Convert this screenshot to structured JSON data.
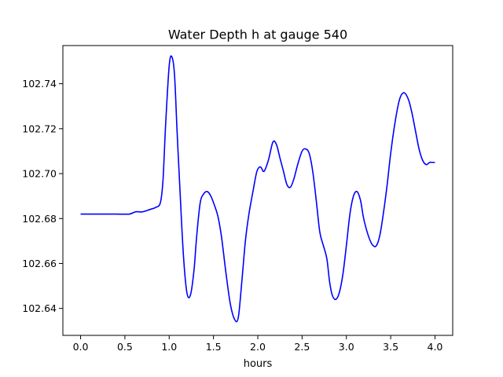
{
  "chart_data": {
    "type": "line",
    "title": "Water Depth h at gauge 540",
    "xlabel": "hours",
    "ylabel": "",
    "xlim": [
      -0.2,
      4.2
    ],
    "ylim": [
      102.628,
      102.757
    ],
    "xticks": [
      {
        "value": 0.0,
        "label": "0.0"
      },
      {
        "value": 0.5,
        "label": "0.5"
      },
      {
        "value": 1.0,
        "label": "1.0"
      },
      {
        "value": 1.5,
        "label": "1.5"
      },
      {
        "value": 2.0,
        "label": "2.0"
      },
      {
        "value": 2.5,
        "label": "2.5"
      },
      {
        "value": 3.0,
        "label": "3.0"
      },
      {
        "value": 3.5,
        "label": "3.5"
      },
      {
        "value": 4.0,
        "label": "4.0"
      }
    ],
    "yticks": [
      {
        "value": 102.64,
        "label": "102.64"
      },
      {
        "value": 102.66,
        "label": "102.66"
      },
      {
        "value": 102.68,
        "label": "102.68"
      },
      {
        "value": 102.7,
        "label": "102.70"
      },
      {
        "value": 102.72,
        "label": "102.72"
      },
      {
        "value": 102.74,
        "label": "102.74"
      }
    ],
    "grid": false,
    "series": [
      {
        "color": "#0000ff",
        "x": [
          0.0,
          0.2,
          0.4,
          0.55,
          0.62,
          0.7,
          0.78,
          0.85,
          0.9,
          0.93,
          0.96,
          1.0,
          1.03,
          1.06,
          1.09,
          1.12,
          1.16,
          1.2,
          1.24,
          1.28,
          1.31,
          1.35,
          1.39,
          1.43,
          1.47,
          1.51,
          1.55,
          1.59,
          1.64,
          1.69,
          1.74,
          1.78,
          1.82,
          1.86,
          1.9,
          1.95,
          1.99,
          2.03,
          2.07,
          2.12,
          2.17,
          2.21,
          2.25,
          2.29,
          2.33,
          2.37,
          2.41,
          2.45,
          2.5,
          2.54,
          2.58,
          2.62,
          2.66,
          2.7,
          2.74,
          2.78,
          2.81,
          2.84,
          2.88,
          2.92,
          2.96,
          3.0,
          3.04,
          3.08,
          3.12,
          3.16,
          3.19,
          3.22,
          3.26,
          3.3,
          3.34,
          3.38,
          3.42,
          3.46,
          3.5,
          3.55,
          3.6,
          3.65,
          3.7,
          3.74,
          3.78,
          3.82,
          3.86,
          3.9,
          3.94,
          3.97,
          4.0
        ],
        "y": [
          102.682,
          102.682,
          102.682,
          102.682,
          102.683,
          102.683,
          102.684,
          102.685,
          102.687,
          102.697,
          102.722,
          102.748,
          102.752,
          102.744,
          102.718,
          102.694,
          102.664,
          102.647,
          102.646,
          102.657,
          102.672,
          102.687,
          102.691,
          102.692,
          102.69,
          102.686,
          102.681,
          102.672,
          102.656,
          102.642,
          102.635,
          102.636,
          102.652,
          102.67,
          102.682,
          102.693,
          102.701,
          102.703,
          102.701,
          102.706,
          102.714,
          102.713,
          102.707,
          102.701,
          102.695,
          102.694,
          102.698,
          102.704,
          102.71,
          102.711,
          102.709,
          102.701,
          102.688,
          102.674,
          102.668,
          102.662,
          102.652,
          102.646,
          102.644,
          102.647,
          102.655,
          102.668,
          102.682,
          102.69,
          102.692,
          102.688,
          102.681,
          102.676,
          102.671,
          102.668,
          102.668,
          102.673,
          102.683,
          102.695,
          102.709,
          102.723,
          102.733,
          102.736,
          102.733,
          102.727,
          102.719,
          102.711,
          102.706,
          102.704,
          102.705,
          102.705,
          102.705
        ]
      }
    ]
  }
}
